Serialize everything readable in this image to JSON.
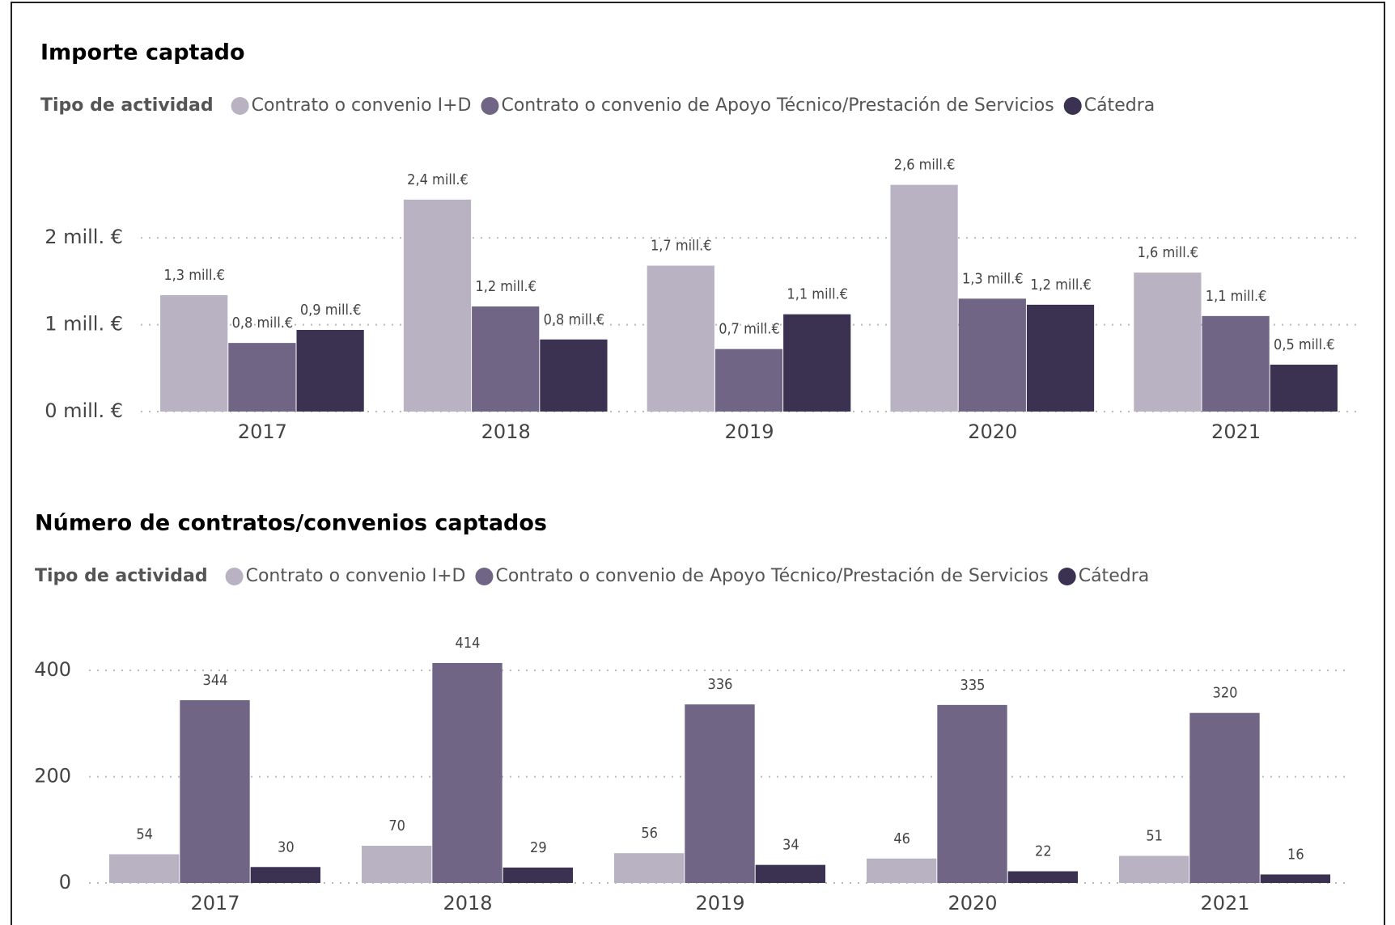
{
  "chart_data": [
    {
      "type": "bar",
      "title": "Importe captado",
      "legend_title": "Tipo de actividad",
      "categories": [
        "2017",
        "2018",
        "2019",
        "2020",
        "2021"
      ],
      "series": [
        {
          "name": "Contrato o convenio I+D",
          "color": "#b8b2c3",
          "values": [
            1.34,
            2.44,
            1.68,
            2.61,
            1.6
          ],
          "value_labels": [
            "1,3 mill.€",
            "2,4 mill.€",
            "1,7 mill.€",
            "2,6 mill.€",
            "1,6 mill.€"
          ]
        },
        {
          "name": "Contrato o convenio de Apoyo Técnico/Prestación de Servicios",
          "color": "#706584",
          "values": [
            0.79,
            1.21,
            0.72,
            1.3,
            1.1
          ],
          "value_labels": [
            "0,8 mill.€",
            "1,2 mill.€",
            "0,7 mill.€",
            "1,3 mill.€",
            "1,1 mill.€"
          ]
        },
        {
          "name": "Cátedra",
          "color": "#3b3150",
          "values": [
            0.94,
            0.83,
            1.12,
            1.23,
            0.54
          ],
          "value_labels": [
            "0,9 mill.€",
            "0,8 mill.€",
            "1,1 mill.€",
            "1,2 mill.€",
            "0,5 mill.€"
          ]
        }
      ],
      "ylim": [
        0,
        3.1
      ],
      "yticks": [
        {
          "value": 0,
          "label": "0 mill. €"
        },
        {
          "value": 1,
          "label": "1 mill. €"
        },
        {
          "value": 2,
          "label": "2 mill. €"
        }
      ],
      "grid": true
    },
    {
      "type": "bar",
      "title": "Número de contratos/convenios captados",
      "legend_title": "Tipo de actividad",
      "categories": [
        "2017",
        "2018",
        "2019",
        "2020",
        "2021"
      ],
      "series": [
        {
          "name": "Contrato o convenio I+D",
          "color": "#b8b2c3",
          "values": [
            54,
            70,
            56,
            46,
            51
          ]
        },
        {
          "name": "Contrato o convenio de Apoyo Técnico/Prestación de Servicios",
          "color": "#706584",
          "values": [
            344,
            414,
            336,
            335,
            320
          ]
        },
        {
          "name": "Cátedra",
          "color": "#3b3150",
          "values": [
            30,
            29,
            34,
            22,
            16
          ]
        }
      ],
      "ylim": [
        0,
        490
      ],
      "yticks": [
        0,
        200,
        400
      ],
      "grid": true
    }
  ]
}
